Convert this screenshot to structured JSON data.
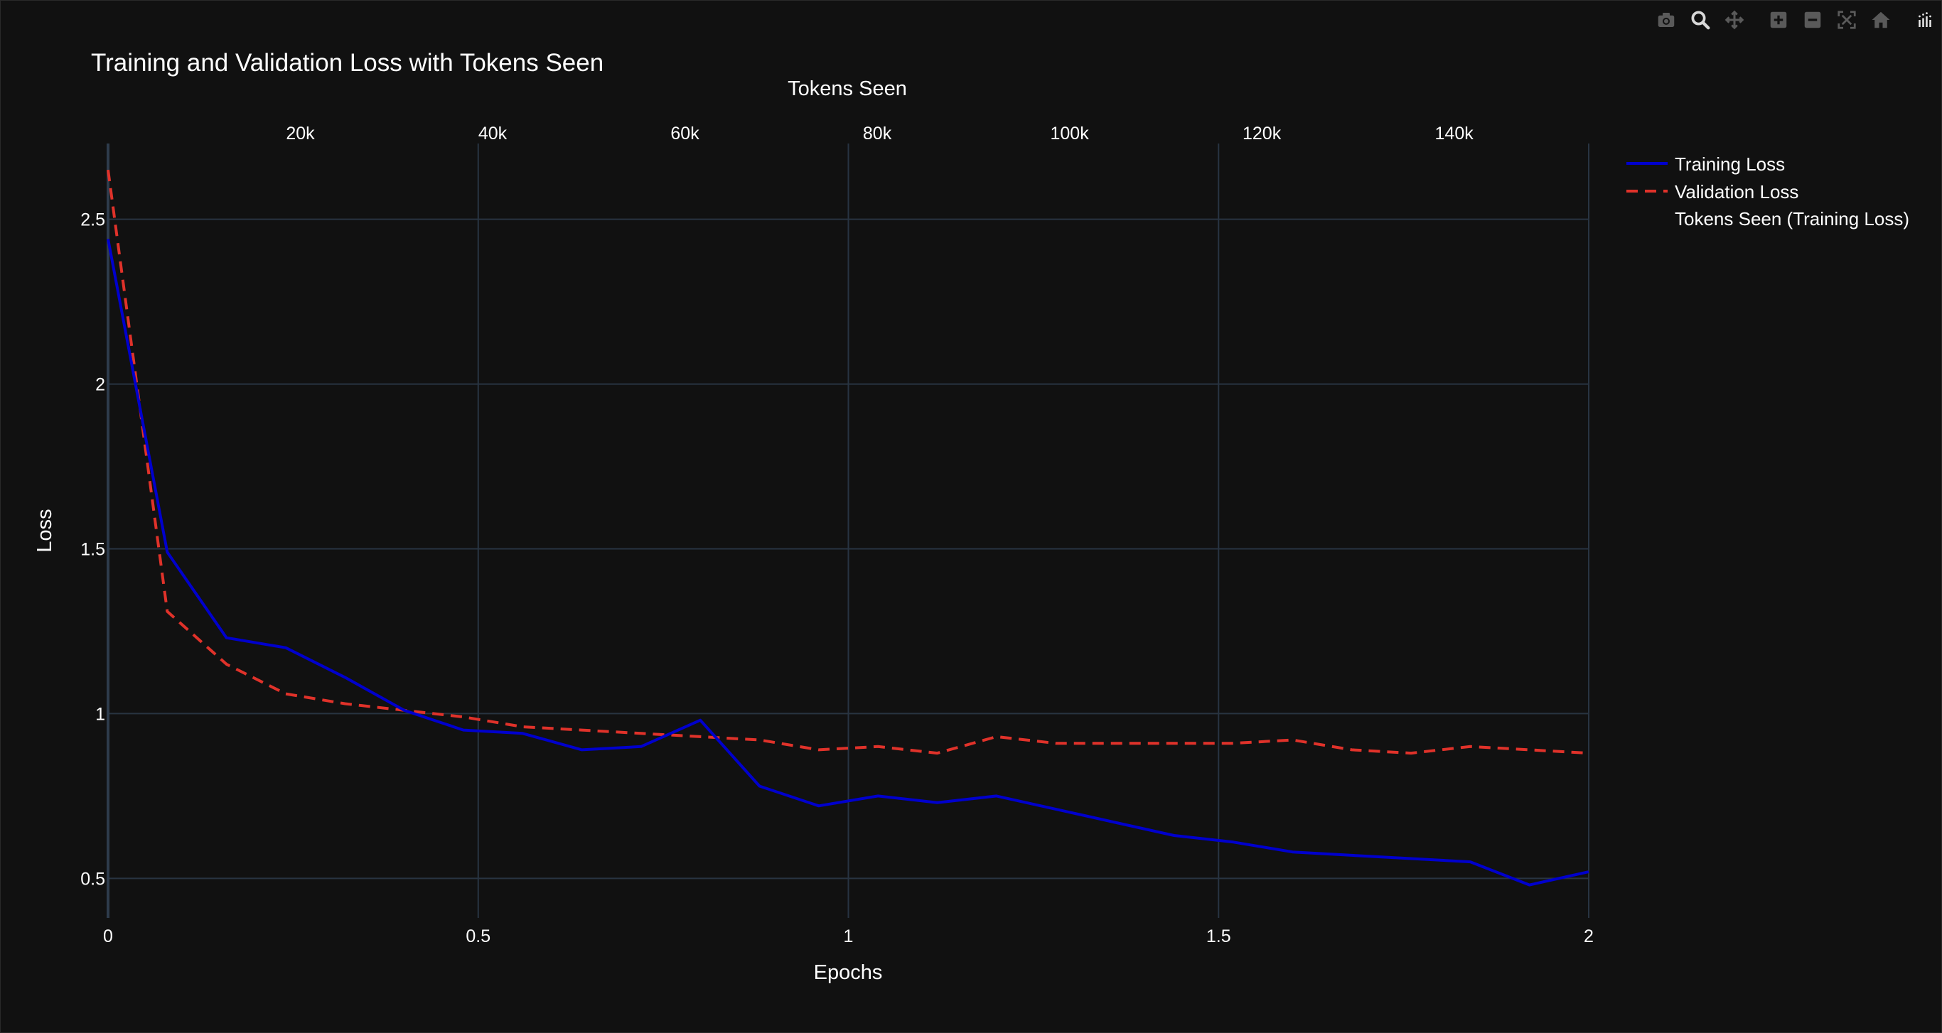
{
  "modebar": {
    "icons": [
      "camera-icon",
      "zoom-icon",
      "pan-icon",
      "zoom-in-icon",
      "zoom-out-icon",
      "autoscale-icon",
      "home-icon",
      "plotly-logo-icon"
    ]
  },
  "colors": {
    "background": "#111111",
    "grid": "#283442",
    "training": "#0000cd",
    "validation": "#e0322a",
    "text": "#ffffff"
  },
  "chart_data": {
    "type": "line",
    "title": "Training and Validation Loss with Tokens Seen",
    "xlabel": "Epochs",
    "ylabel": "Loss",
    "x2label": "Tokens Seen",
    "xlim": [
      0,
      2
    ],
    "ylim": [
      0.38,
      2.73
    ],
    "x2lim": [
      0,
      154000
    ],
    "x_ticks": [
      0,
      0.5,
      1,
      1.5,
      2
    ],
    "x_tick_labels": [
      "0",
      "0.5",
      "1",
      "1.5",
      "2"
    ],
    "y_ticks": [
      0.5,
      1,
      1.5,
      2,
      2.5
    ],
    "y_tick_labels": [
      "0.5",
      "1",
      "1.5",
      "2",
      "2.5"
    ],
    "x2_ticks": [
      20000,
      40000,
      60000,
      80000,
      100000,
      120000,
      140000
    ],
    "x2_tick_labels": [
      "20k",
      "40k",
      "60k",
      "80k",
      "100k",
      "120k",
      "140k"
    ],
    "grid": true,
    "legend_position": "top-right",
    "series": [
      {
        "name": "Training Loss",
        "style": "solid",
        "color": "#0000cd",
        "x": [
          0,
          0.08,
          0.16,
          0.24,
          0.32,
          0.4,
          0.48,
          0.56,
          0.64,
          0.72,
          0.8,
          0.88,
          0.96,
          1.04,
          1.12,
          1.2,
          1.28,
          1.36,
          1.44,
          1.52,
          1.6,
          1.68,
          1.76,
          1.84,
          1.92,
          2.0
        ],
        "y": [
          2.44,
          1.49,
          1.23,
          1.2,
          1.11,
          1.01,
          0.95,
          0.94,
          0.89,
          0.9,
          0.98,
          0.78,
          0.72,
          0.75,
          0.73,
          0.75,
          0.71,
          0.67,
          0.63,
          0.61,
          0.58,
          0.57,
          0.56,
          0.55,
          0.48,
          0.52
        ]
      },
      {
        "name": "Validation Loss",
        "style": "dash",
        "color": "#e0322a",
        "x": [
          0,
          0.08,
          0.16,
          0.24,
          0.32,
          0.4,
          0.48,
          0.56,
          0.64,
          0.72,
          0.8,
          0.88,
          0.96,
          1.04,
          1.12,
          1.2,
          1.28,
          1.36,
          1.44,
          1.52,
          1.6,
          1.68,
          1.76,
          1.84,
          1.92,
          2.0
        ],
        "y": [
          2.65,
          1.31,
          1.15,
          1.06,
          1.03,
          1.01,
          0.99,
          0.96,
          0.95,
          0.94,
          0.93,
          0.92,
          0.89,
          0.9,
          0.88,
          0.93,
          0.91,
          0.91,
          0.91,
          0.91,
          0.92,
          0.89,
          0.88,
          0.9,
          0.89,
          0.88
        ]
      },
      {
        "name": "Tokens Seen (Training Loss)",
        "style": "hidden",
        "color": "rgba(0,0,0,0)"
      }
    ]
  }
}
